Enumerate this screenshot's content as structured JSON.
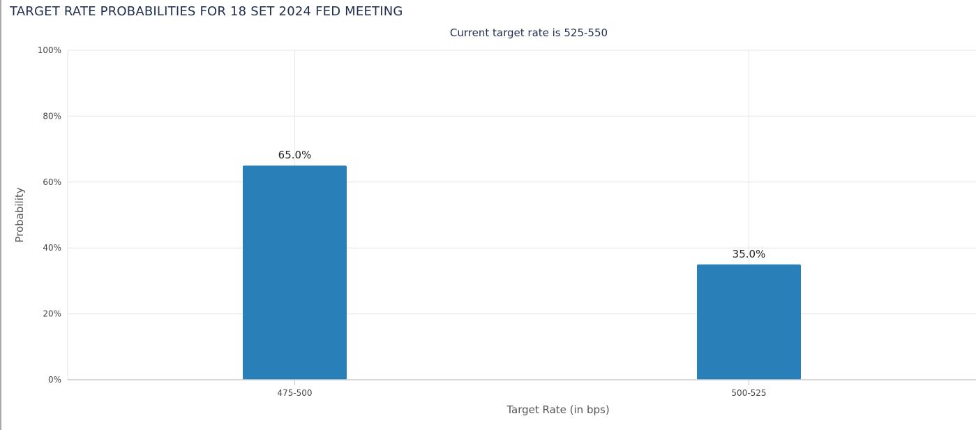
{
  "page": {
    "title": "TARGET RATE PROBABILITIES FOR 18 SET 2024 FED MEETING"
  },
  "chart_data": {
    "type": "bar",
    "title": "Current target rate is 525-550",
    "xlabel": "Target Rate (in bps)",
    "ylabel": "Probability",
    "categories": [
      "475-500",
      "500-525"
    ],
    "values": [
      65.0,
      35.0
    ],
    "value_labels": [
      "65.0%",
      "35.0%"
    ],
    "ylim": [
      0,
      100
    ],
    "yticks": [
      0,
      20,
      40,
      60,
      80,
      100
    ],
    "ytick_labels": [
      "0%",
      "20%",
      "40%",
      "60%",
      "80%",
      "100%"
    ],
    "grid": true,
    "legend": "none",
    "colors": {
      "bar": "#2980b9",
      "grid": "#e6e6e6",
      "axis": "#c8c8c8",
      "title": "#1f2d4d"
    }
  }
}
